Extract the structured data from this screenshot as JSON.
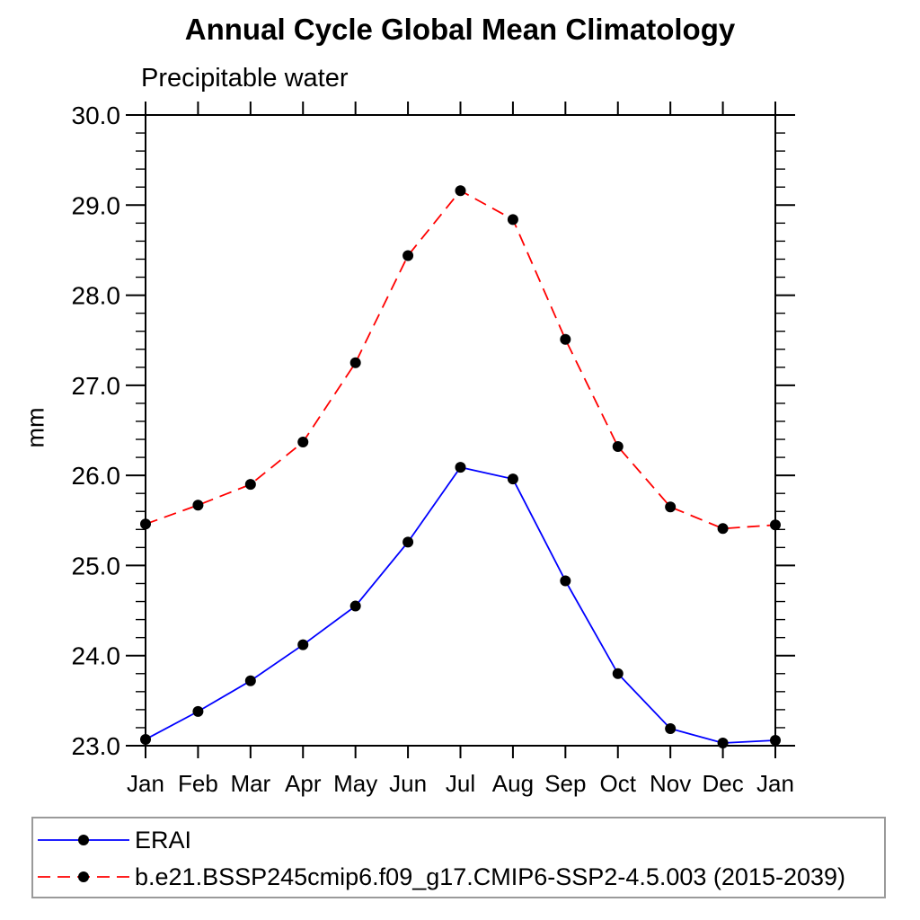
{
  "chart": {
    "title": "Annual Cycle Global Mean Climatology",
    "subtitle": "Precipitable water",
    "ylabel": "mm"
  },
  "chart_data": {
    "type": "line",
    "title": "Annual Cycle Global Mean Climatology",
    "subtitle": "Precipitable water",
    "xlabel": "",
    "ylabel": "mm",
    "categories": [
      "Jan",
      "Feb",
      "Mar",
      "Apr",
      "May",
      "Jun",
      "Jul",
      "Aug",
      "Sep",
      "Oct",
      "Nov",
      "Dec",
      "Jan"
    ],
    "series": [
      {
        "name": "ERAI",
        "color": "#0000ff",
        "line_style": "solid",
        "marker": "filled-circle",
        "marker_color": "#000000",
        "values": [
          23.07,
          23.38,
          23.72,
          24.12,
          24.55,
          25.26,
          26.09,
          25.96,
          24.83,
          23.8,
          23.19,
          23.03,
          23.06
        ]
      },
      {
        "name": "b.e21.BSSP245cmip6.f09_g17.CMIP6-SSP2-4.5.003 (2015-2039)",
        "color": "#ff0000",
        "line_style": "dashed",
        "marker": "filled-circle",
        "marker_color": "#000000",
        "values": [
          25.46,
          25.67,
          25.9,
          26.37,
          27.25,
          28.44,
          29.16,
          28.84,
          27.51,
          26.32,
          25.65,
          25.41,
          25.45
        ]
      }
    ],
    "ylim": [
      23.0,
      30.0
    ],
    "ytick_major_interval": 1.0,
    "ytick_minor_interval": 0.2,
    "ytick_label_format": "one-decimal",
    "grid": false,
    "frame": true,
    "legend_position": "bottom-left-box"
  }
}
